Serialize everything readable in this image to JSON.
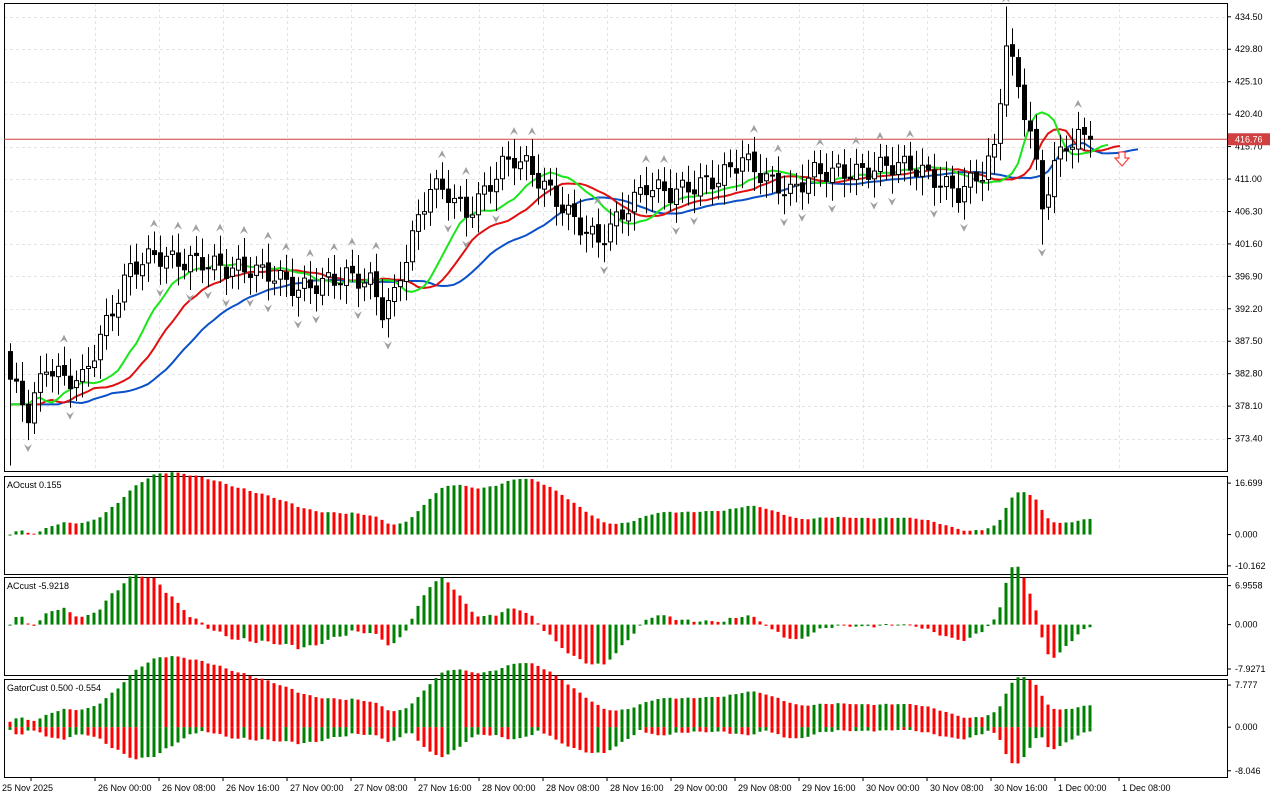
{
  "chart_data": {
    "type": "candlestick",
    "price_axis": {
      "ticks": [
        "434.50",
        "429.80",
        "425.10",
        "420.40",
        "415.70",
        "411.00",
        "406.30",
        "401.60",
        "396.90",
        "392.20",
        "387.50",
        "382.80",
        "378.10",
        "373.40"
      ],
      "range": [
        368.7,
        436.5
      ],
      "current_price": "416.76"
    },
    "time_axis": {
      "labels": [
        "25 Nov 2025",
        "26 Nov 00:00",
        "26 Nov 08:00",
        "26 Nov 16:00",
        "27 Nov 00:00",
        "27 Nov 08:00",
        "27 Nov 16:00",
        "28 Nov 00:00",
        "28 Nov 08:00",
        "28 Nov 16:00",
        "29 Nov 00:00",
        "29 Nov 08:00",
        "29 Nov 16:00",
        "30 Nov 00:00",
        "30 Nov 08:00",
        "30 Nov 16:00",
        "1 Dec 00:00",
        "1 Dec 08:00"
      ]
    },
    "close_anchors": [
      [
        0,
        382
      ],
      [
        3,
        377
      ],
      [
        6,
        384
      ],
      [
        9,
        382
      ],
      [
        12,
        382
      ],
      [
        16,
        390
      ],
      [
        20,
        398
      ],
      [
        24,
        400
      ],
      [
        28,
        399
      ],
      [
        32,
        399
      ],
      [
        36,
        398
      ],
      [
        40,
        398
      ],
      [
        44,
        397
      ],
      [
        48,
        395
      ],
      [
        52,
        396
      ],
      [
        56,
        397
      ],
      [
        60,
        396
      ],
      [
        62,
        392
      ],
      [
        64,
        394
      ],
      [
        66,
        400
      ],
      [
        68,
        405
      ],
      [
        70,
        410
      ],
      [
        73,
        409
      ],
      [
        76,
        406
      ],
      [
        79,
        409
      ],
      [
        82,
        413
      ],
      [
        84,
        414
      ],
      [
        86,
        413
      ],
      [
        88,
        411
      ],
      [
        90,
        409
      ],
      [
        94,
        405
      ],
      [
        98,
        402
      ],
      [
        102,
        406
      ],
      [
        106,
        410
      ],
      [
        110,
        409
      ],
      [
        114,
        410
      ],
      [
        118,
        411
      ],
      [
        122,
        414
      ],
      [
        126,
        411
      ],
      [
        130,
        409
      ],
      [
        134,
        412
      ],
      [
        138,
        412
      ],
      [
        142,
        412
      ],
      [
        146,
        413
      ],
      [
        150,
        413
      ],
      [
        154,
        411
      ],
      [
        158,
        409
      ],
      [
        162,
        412
      ],
      [
        164,
        415
      ],
      [
        166,
        431
      ],
      [
        168,
        424
      ],
      [
        170,
        418
      ],
      [
        172,
        407
      ],
      [
        174,
        413
      ],
      [
        176,
        416
      ],
      [
        178,
        417
      ],
      [
        180,
        416.76
      ]
    ],
    "indicators": {
      "lines": [
        {
          "name": "jaw",
          "color": "#0a50c8"
        },
        {
          "name": "teeth",
          "color": "#e01010"
        },
        {
          "name": "lips",
          "color": "#19e619"
        }
      ],
      "fractal_color": "#a0a0a0",
      "arrow_color": "#ff4040",
      "level_line_color": "#d04040"
    },
    "subpanels": [
      {
        "title": "AOcust 0.155",
        "ticks": [
          "16.699",
          "0.000",
          "-10.162"
        ],
        "range": [
          -12.8,
          19.0
        ]
      },
      {
        "title": "ACcust -5.9218",
        "ticks": [
          "6.9558",
          "0.000",
          "-7.9271"
        ],
        "range": [
          -9.0,
          8.5
        ]
      },
      {
        "title": "GatorCust 0.500 -0.554",
        "ticks": [
          "7.777",
          "0.000",
          "-8.046"
        ],
        "range": [
          -9.2,
          8.9
        ]
      }
    ],
    "colors": {
      "up": "#008000",
      "down": "#ff0000",
      "grid": "#e4e4e4",
      "frame": "#000000"
    }
  }
}
